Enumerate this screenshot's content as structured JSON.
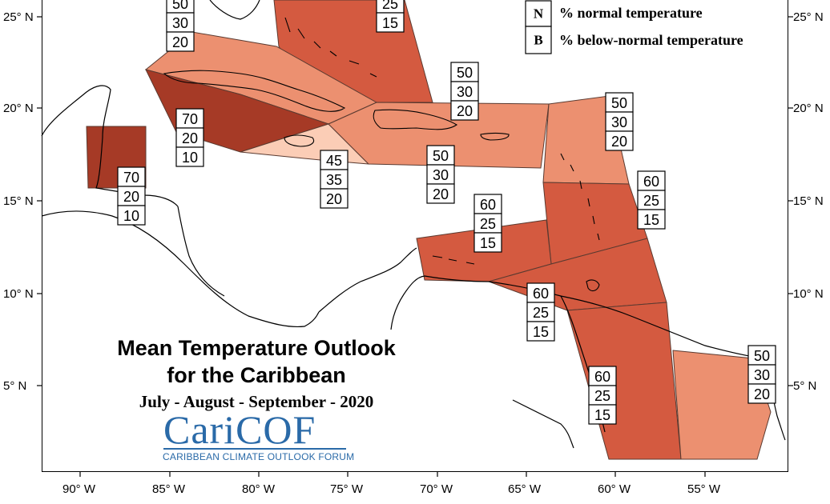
{
  "map": {
    "title_line1": "Mean Temperature Outlook",
    "title_line2": "for the Caribbean",
    "period": "July - August - September - 2020",
    "logo_text": "CariCOF",
    "logo_subtitle": "CARIBBEAN CLIMATE OUTLOOK FORUM",
    "lat_labels": [
      "25° N",
      "20° N",
      "15° N",
      "10° N",
      "5° N"
    ],
    "lon_labels": [
      "90° W",
      "85° W",
      "80° W",
      "75° W",
      "70° W",
      "65° W",
      "60° W",
      "55° W"
    ],
    "legend": [
      {
        "key": "N",
        "text": "% normal temperature"
      },
      {
        "key": "B",
        "text": "% below-normal temperature"
      }
    ],
    "colors": {
      "prob_70": "#a63a26",
      "prob_60": "#d45a40",
      "prob_50": "#ec9070",
      "prob_45": "#fbcdb6",
      "coast": "#000000",
      "logo": "#2a6aa8"
    }
  },
  "forecast_boxes": [
    {
      "id": "cuba-north",
      "values": [
        "50",
        "30",
        "20"
      ]
    },
    {
      "id": "bahamas",
      "values": [
        "25",
        "15"
      ]
    },
    {
      "id": "hispaniola-north",
      "values": [
        "50",
        "30",
        "20"
      ]
    },
    {
      "id": "leeward-islands",
      "values": [
        "50",
        "30",
        "20"
      ]
    },
    {
      "id": "cuba-south",
      "values": [
        "70",
        "20",
        "10"
      ]
    },
    {
      "id": "belize",
      "values": [
        "70",
        "20",
        "10"
      ]
    },
    {
      "id": "jamaica",
      "values": [
        "45",
        "35",
        "20"
      ]
    },
    {
      "id": "hispaniola-south",
      "values": [
        "50",
        "30",
        "20"
      ]
    },
    {
      "id": "windward-islands",
      "values": [
        "60",
        "25",
        "15"
      ]
    },
    {
      "id": "abc-islands",
      "values": [
        "60",
        "25",
        "15"
      ]
    },
    {
      "id": "trinidad",
      "values": [
        "60",
        "25",
        "15"
      ]
    },
    {
      "id": "guyana",
      "values": [
        "60",
        "25",
        "15"
      ]
    },
    {
      "id": "french-guiana",
      "values": [
        "50",
        "30",
        "20"
      ]
    }
  ]
}
